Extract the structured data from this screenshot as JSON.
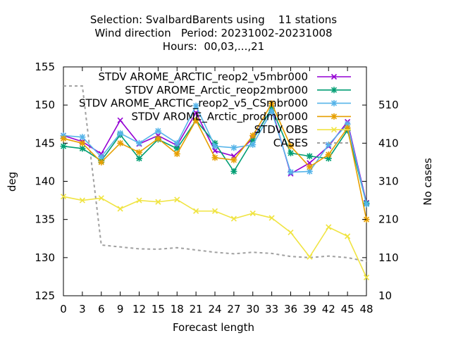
{
  "chart_data": {
    "type": "line",
    "title_lines": [
      "Selection: SvalbardBarents using    11 stations",
      "Wind direction   Period: 20231002-20231008",
      "Hours:  00,03,...,21"
    ],
    "xlabel": "Forecast length",
    "ylabel": "deg",
    "y2label": "No cases",
    "x": [
      0,
      3,
      6,
      9,
      12,
      15,
      18,
      21,
      24,
      27,
      30,
      33,
      36,
      39,
      42,
      45,
      48
    ],
    "xlim": [
      0,
      48
    ],
    "ylim": [
      125,
      155
    ],
    "y2lim": [
      10,
      610
    ],
    "yticks": [
      125,
      130,
      135,
      140,
      145,
      150,
      155
    ],
    "y2ticks": [
      10,
      110,
      210,
      310,
      410,
      510
    ],
    "grid": false,
    "legend_position": "top-right",
    "series": [
      {
        "name": "STDV AROME_ARCTIC_reop2_v5mbr000",
        "color": "#9400d3",
        "axis": "y",
        "values": [
          146.0,
          145.2,
          143.6,
          148.0,
          144.9,
          146.0,
          144.7,
          149.0,
          144.0,
          143.3,
          145.6,
          149.5,
          141.0,
          142.4,
          144.6,
          147.8,
          137.2
        ]
      },
      {
        "name": "STDV AROME_Arctic_reop2mbr000",
        "color": "#009e73",
        "axis": "y",
        "values": [
          144.6,
          144.3,
          142.7,
          146.1,
          143.0,
          145.5,
          144.3,
          148.0,
          145.0,
          141.3,
          145.4,
          149.6,
          143.7,
          143.3,
          143.0,
          146.7,
          137.1
        ]
      },
      {
        "name": "STDV AROME_ARCTIC_reop2_v5_CSmbr000",
        "color": "#56b4e9",
        "axis": "y",
        "values": [
          146.0,
          145.8,
          143.2,
          146.3,
          145.0,
          146.6,
          145.0,
          149.9,
          144.6,
          144.4,
          144.8,
          149.2,
          141.2,
          141.3,
          144.8,
          147.5,
          137.0
        ]
      },
      {
        "name": "STDV AROME_Arctic_prodmbr000",
        "color": "#e69f00",
        "axis": "y",
        "values": [
          145.6,
          145.0,
          142.5,
          145.0,
          143.8,
          145.6,
          143.6,
          148.0,
          143.1,
          142.8,
          146.0,
          150.2,
          144.6,
          141.9,
          143.5,
          147.0,
          135.0
        ]
      },
      {
        "name": "STDV OBS",
        "color": "#f0e442",
        "axis": "y",
        "values": [
          138.0,
          137.5,
          137.8,
          136.4,
          137.5,
          137.3,
          137.6,
          136.1,
          136.1,
          135.1,
          135.8,
          135.2,
          133.3,
          130.1,
          134.0,
          132.8,
          127.4
        ]
      },
      {
        "name": "CASES",
        "color": "#a0a0a0",
        "axis": "y2",
        "dashed": true,
        "values": [
          560,
          560,
          143,
          138,
          133,
          132,
          136,
          130,
          124,
          120,
          124,
          121,
          113,
          110,
          114,
          110,
          100
        ]
      }
    ]
  }
}
